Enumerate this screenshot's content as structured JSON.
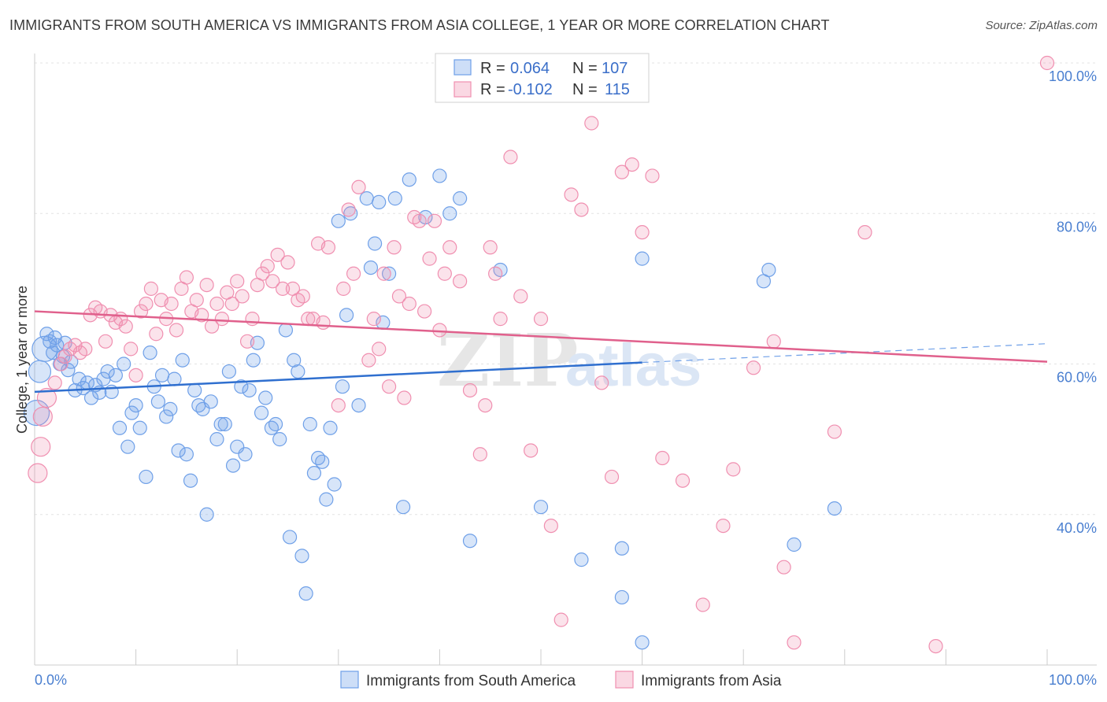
{
  "title": "IMMIGRANTS FROM SOUTH AMERICA VS IMMIGRANTS FROM ASIA COLLEGE, 1 YEAR OR MORE CORRELATION CHART",
  "source": "Source: ZipAtlas.com",
  "watermark": {
    "zip": "ZIP",
    "atlas": "atlas"
  },
  "legend_top": [
    {
      "r_label": "R =",
      "r_value": "0.064",
      "n_label": "N =",
      "n_value": "107",
      "color": "#6fa0e8"
    },
    {
      "r_label": "R =",
      "r_value": "-0.102",
      "n_label": "N =",
      "n_value": "115",
      "color": "#f08fb0"
    }
  ],
  "chart_data": {
    "type": "scatter",
    "title": "",
    "xlabel": "",
    "ylabel": "College, 1 year or more",
    "xlim": [
      0,
      100
    ],
    "ylim": [
      20,
      100
    ],
    "x_tick_labels": [
      "0.0%",
      "100.0%"
    ],
    "y_ticks": [
      40,
      60,
      80,
      100
    ],
    "y_tick_labels": [
      "40.0%",
      "60.0%",
      "80.0%",
      "100.0%"
    ],
    "grid": true,
    "series": [
      {
        "name": "Immigrants from South America",
        "color": "#6fa0e8",
        "trend": {
          "x": [
            0,
            60
          ],
          "y": [
            56.3,
            60.2
          ],
          "dashed_to": [
            100,
            62.7
          ]
        },
        "points": [
          [
            0.2,
            53.5
          ],
          [
            0.5,
            59.0
          ],
          [
            1.0,
            62.0
          ],
          [
            1.2,
            64.0
          ],
          [
            1.5,
            63.0
          ],
          [
            1.8,
            61.5
          ],
          [
            2.0,
            63.5
          ],
          [
            2.2,
            62.5
          ],
          [
            2.5,
            60.0
          ],
          [
            2.8,
            61.0
          ],
          [
            3.0,
            62.8
          ],
          [
            3.3,
            59.2
          ],
          [
            3.6,
            60.3
          ],
          [
            4.0,
            56.5
          ],
          [
            4.4,
            58.0
          ],
          [
            4.8,
            56.8
          ],
          [
            5.2,
            57.5
          ],
          [
            5.6,
            55.5
          ],
          [
            6.0,
            57.2
          ],
          [
            6.4,
            56.2
          ],
          [
            6.8,
            58.0
          ],
          [
            7.2,
            59.0
          ],
          [
            7.6,
            56.3
          ],
          [
            8.0,
            58.5
          ],
          [
            8.4,
            51.5
          ],
          [
            8.8,
            60.0
          ],
          [
            9.2,
            49.0
          ],
          [
            9.6,
            53.5
          ],
          [
            10.0,
            54.5
          ],
          [
            10.4,
            51.5
          ],
          [
            11.0,
            45.0
          ],
          [
            11.4,
            61.5
          ],
          [
            11.8,
            57.0
          ],
          [
            12.2,
            55.0
          ],
          [
            12.6,
            58.5
          ],
          [
            13.0,
            53.0
          ],
          [
            13.4,
            54.0
          ],
          [
            13.8,
            58.0
          ],
          [
            14.2,
            48.5
          ],
          [
            14.6,
            60.5
          ],
          [
            15.0,
            48.0
          ],
          [
            15.4,
            44.5
          ],
          [
            15.8,
            56.5
          ],
          [
            16.2,
            54.5
          ],
          [
            16.6,
            54.0
          ],
          [
            17.0,
            40.0
          ],
          [
            17.4,
            55.0
          ],
          [
            18.0,
            50.0
          ],
          [
            18.4,
            52.0
          ],
          [
            18.8,
            52.0
          ],
          [
            19.2,
            59.0
          ],
          [
            19.6,
            46.5
          ],
          [
            20.0,
            49.0
          ],
          [
            20.4,
            57.0
          ],
          [
            20.8,
            48.0
          ],
          [
            21.2,
            56.5
          ],
          [
            21.6,
            60.5
          ],
          [
            22.0,
            62.8
          ],
          [
            22.4,
            53.5
          ],
          [
            22.8,
            55.5
          ],
          [
            23.4,
            51.5
          ],
          [
            23.8,
            52.0
          ],
          [
            24.2,
            50.0
          ],
          [
            24.8,
            64.5
          ],
          [
            25.2,
            37.0
          ],
          [
            25.6,
            60.5
          ],
          [
            26.0,
            59.0
          ],
          [
            26.4,
            34.5
          ],
          [
            26.8,
            29.5
          ],
          [
            27.2,
            52.0
          ],
          [
            27.6,
            45.5
          ],
          [
            28.0,
            47.5
          ],
          [
            28.4,
            47.0
          ],
          [
            28.8,
            42.0
          ],
          [
            29.2,
            51.5
          ],
          [
            29.6,
            44.0
          ],
          [
            30.0,
            79.0
          ],
          [
            30.4,
            57.0
          ],
          [
            30.8,
            66.5
          ],
          [
            31.2,
            80.0
          ],
          [
            32.0,
            54.5
          ],
          [
            32.8,
            82.0
          ],
          [
            33.2,
            72.8
          ],
          [
            33.6,
            76.0
          ],
          [
            34.0,
            81.5
          ],
          [
            34.4,
            65.5
          ],
          [
            35.0,
            72.0
          ],
          [
            35.6,
            82.0
          ],
          [
            36.4,
            41.0
          ],
          [
            37.0,
            84.5
          ],
          [
            38.6,
            79.5
          ],
          [
            40.0,
            85.0
          ],
          [
            41.0,
            80.0
          ],
          [
            42.0,
            82.0
          ],
          [
            43.0,
            36.5
          ],
          [
            46.0,
            72.5
          ],
          [
            50.0,
            41.0
          ],
          [
            54.0,
            34.0
          ],
          [
            58.0,
            35.5
          ],
          [
            58.0,
            29.0
          ],
          [
            60.0,
            74.0
          ],
          [
            60.0,
            23.0
          ],
          [
            75.0,
            36.0
          ],
          [
            72.0,
            71.0
          ],
          [
            72.5,
            72.5
          ],
          [
            79.0,
            40.8
          ]
        ]
      },
      {
        "name": "Immigrants from Asia",
        "color": "#f08fb0",
        "trend": {
          "x": [
            0,
            100
          ],
          "y": [
            67.0,
            60.3
          ]
        },
        "points": [
          [
            0.3,
            45.5
          ],
          [
            0.6,
            49.0
          ],
          [
            0.8,
            53.0
          ],
          [
            1.2,
            55.5
          ],
          [
            2.0,
            57.5
          ],
          [
            2.6,
            60.0
          ],
          [
            3.0,
            61.0
          ],
          [
            3.5,
            62.0
          ],
          [
            4.0,
            62.5
          ],
          [
            4.5,
            61.5
          ],
          [
            5.0,
            62.0
          ],
          [
            5.5,
            66.5
          ],
          [
            6.0,
            67.5
          ],
          [
            6.5,
            67.0
          ],
          [
            7.0,
            63.0
          ],
          [
            7.5,
            66.5
          ],
          [
            8.0,
            65.5
          ],
          [
            8.5,
            66.0
          ],
          [
            9.0,
            65.0
          ],
          [
            9.5,
            62.0
          ],
          [
            10.0,
            58.5
          ],
          [
            10.5,
            67.0
          ],
          [
            11.0,
            68.0
          ],
          [
            11.5,
            70.0
          ],
          [
            12.0,
            64.0
          ],
          [
            12.5,
            68.5
          ],
          [
            13.0,
            66.0
          ],
          [
            13.5,
            68.0
          ],
          [
            14.0,
            64.5
          ],
          [
            14.5,
            70.0
          ],
          [
            15.0,
            71.5
          ],
          [
            15.5,
            67.0
          ],
          [
            16.0,
            68.5
          ],
          [
            16.5,
            66.5
          ],
          [
            17.0,
            70.5
          ],
          [
            17.5,
            65.0
          ],
          [
            18.0,
            68.0
          ],
          [
            18.5,
            66.0
          ],
          [
            19.0,
            69.5
          ],
          [
            19.5,
            68.0
          ],
          [
            20.0,
            71.0
          ],
          [
            20.5,
            69.0
          ],
          [
            21.0,
            63.0
          ],
          [
            21.5,
            66.0
          ],
          [
            22.0,
            70.5
          ],
          [
            22.5,
            72.0
          ],
          [
            23.0,
            73.0
          ],
          [
            23.5,
            71.0
          ],
          [
            24.0,
            74.5
          ],
          [
            24.5,
            70.0
          ],
          [
            25.0,
            73.5
          ],
          [
            25.5,
            70.0
          ],
          [
            26.0,
            68.5
          ],
          [
            26.5,
            69.0
          ],
          [
            27.0,
            66.0
          ],
          [
            27.5,
            66.0
          ],
          [
            28.0,
            76.0
          ],
          [
            28.5,
            65.5
          ],
          [
            29.0,
            75.5
          ],
          [
            30.0,
            54.5
          ],
          [
            30.5,
            70.0
          ],
          [
            31.0,
            80.5
          ],
          [
            31.5,
            72.0
          ],
          [
            32.0,
            83.5
          ],
          [
            33.0,
            60.5
          ],
          [
            33.5,
            66.0
          ],
          [
            34.0,
            62.0
          ],
          [
            34.5,
            72.0
          ],
          [
            35.0,
            57.0
          ],
          [
            35.5,
            75.5
          ],
          [
            36.0,
            69.0
          ],
          [
            36.5,
            55.5
          ],
          [
            37.0,
            68.0
          ],
          [
            37.5,
            79.5
          ],
          [
            38.0,
            79.0
          ],
          [
            38.5,
            67.0
          ],
          [
            39.0,
            74.0
          ],
          [
            39.5,
            79.0
          ],
          [
            40.0,
            64.5
          ],
          [
            40.5,
            72.0
          ],
          [
            41.0,
            75.5
          ],
          [
            42.0,
            71.0
          ],
          [
            43.0,
            56.5
          ],
          [
            44.0,
            48.0
          ],
          [
            44.5,
            54.5
          ],
          [
            45.0,
            75.5
          ],
          [
            45.5,
            72.0
          ],
          [
            46.0,
            66.0
          ],
          [
            47.0,
            87.5
          ],
          [
            48.0,
            69.0
          ],
          [
            49.0,
            48.5
          ],
          [
            50.0,
            66.0
          ],
          [
            51.0,
            38.5
          ],
          [
            52.0,
            26.0
          ],
          [
            53.0,
            82.5
          ],
          [
            54.0,
            80.5
          ],
          [
            55.0,
            92.0
          ],
          [
            56.0,
            57.5
          ],
          [
            57.0,
            45.0
          ],
          [
            58.0,
            85.5
          ],
          [
            59.0,
            86.5
          ],
          [
            60.0,
            77.5
          ],
          [
            61.0,
            85.0
          ],
          [
            62.0,
            47.5
          ],
          [
            64.0,
            44.5
          ],
          [
            66.0,
            28.0
          ],
          [
            68.0,
            38.5
          ],
          [
            69.0,
            46.0
          ],
          [
            71.0,
            59.5
          ],
          [
            73.0,
            63.0
          ],
          [
            74.0,
            33.0
          ],
          [
            75.0,
            23.0
          ],
          [
            79.0,
            51.0
          ],
          [
            82.0,
            77.5
          ],
          [
            89.0,
            22.5
          ],
          [
            100.0,
            100.0
          ]
        ]
      }
    ]
  }
}
